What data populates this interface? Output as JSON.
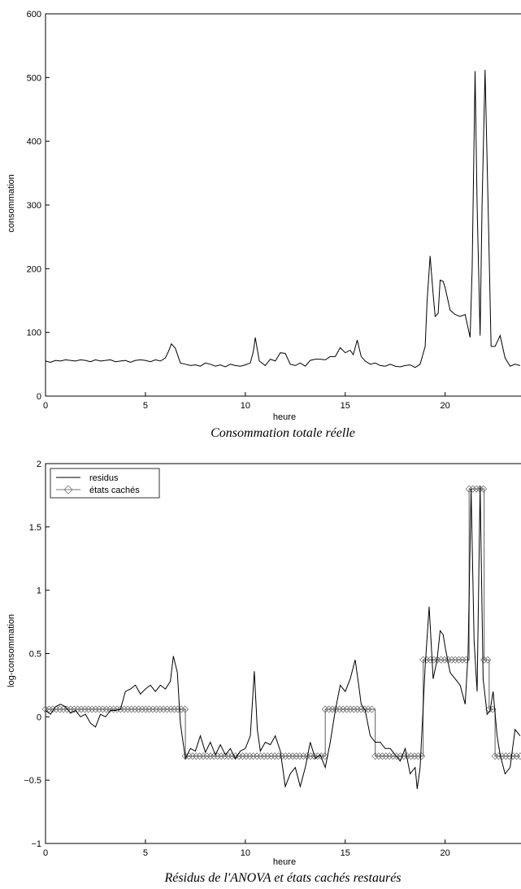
{
  "chart_data": [
    {
      "type": "line",
      "caption": "Consommation totale réelle",
      "xlabel": "heure",
      "ylabel": "consommation",
      "xlim": [
        0,
        23.75
      ],
      "ylim": [
        0,
        600
      ],
      "xticks": [
        "0",
        "5",
        "10",
        "15",
        "20"
      ],
      "yticks": [
        "0",
        "100",
        "200",
        "300",
        "400",
        "500",
        "600"
      ],
      "grid": false,
      "series": [
        {
          "color": "#000000",
          "points": [
            [
              0,
              55
            ],
            [
              0.25,
              53
            ],
            [
              0.5,
              56
            ],
            [
              0.75,
              55
            ],
            [
              1,
              57
            ],
            [
              1.25,
              56
            ],
            [
              1.5,
              55
            ],
            [
              1.75,
              57
            ],
            [
              2,
              56
            ],
            [
              2.25,
              54
            ],
            [
              2.5,
              57
            ],
            [
              2.75,
              55
            ],
            [
              3,
              56
            ],
            [
              3.25,
              57
            ],
            [
              3.5,
              54
            ],
            [
              3.75,
              55
            ],
            [
              4,
              56
            ],
            [
              4.25,
              53
            ],
            [
              4.5,
              56
            ],
            [
              4.75,
              57
            ],
            [
              5,
              56
            ],
            [
              5.25,
              54
            ],
            [
              5.5,
              57
            ],
            [
              5.75,
              55
            ],
            [
              6,
              60
            ],
            [
              6.15,
              70
            ],
            [
              6.3,
              82
            ],
            [
              6.5,
              75
            ],
            [
              6.75,
              52
            ],
            [
              7,
              50
            ],
            [
              7.25,
              48
            ],
            [
              7.5,
              49
            ],
            [
              7.75,
              47
            ],
            [
              8,
              52
            ],
            [
              8.25,
              50
            ],
            [
              8.5,
              47
            ],
            [
              8.75,
              49
            ],
            [
              9,
              46
            ],
            [
              9.25,
              50
            ],
            [
              9.5,
              48
            ],
            [
              9.75,
              47
            ],
            [
              10,
              49
            ],
            [
              10.25,
              52
            ],
            [
              10.4,
              70
            ],
            [
              10.5,
              92
            ],
            [
              10.7,
              55
            ],
            [
              11,
              48
            ],
            [
              11.25,
              58
            ],
            [
              11.5,
              55
            ],
            [
              11.75,
              68
            ],
            [
              12,
              67
            ],
            [
              12.25,
              50
            ],
            [
              12.5,
              48
            ],
            [
              12.75,
              52
            ],
            [
              13,
              47
            ],
            [
              13.25,
              56
            ],
            [
              13.5,
              58
            ],
            [
              13.75,
              58
            ],
            [
              14,
              57
            ],
            [
              14.25,
              62
            ],
            [
              14.5,
              62
            ],
            [
              14.75,
              76
            ],
            [
              15,
              68
            ],
            [
              15.25,
              72
            ],
            [
              15.4,
              65
            ],
            [
              15.6,
              88
            ],
            [
              15.8,
              62
            ],
            [
              16,
              55
            ],
            [
              16.25,
              50
            ],
            [
              16.5,
              52
            ],
            [
              16.75,
              48
            ],
            [
              17,
              47
            ],
            [
              17.25,
              50
            ],
            [
              17.5,
              47
            ],
            [
              17.75,
              46
            ],
            [
              18,
              48
            ],
            [
              18.25,
              49
            ],
            [
              18.5,
              45
            ],
            [
              18.75,
              50
            ],
            [
              19,
              78
            ],
            [
              19.1,
              150
            ],
            [
              19.25,
              220
            ],
            [
              19.4,
              160
            ],
            [
              19.5,
              125
            ],
            [
              19.65,
              130
            ],
            [
              19.75,
              182
            ],
            [
              19.9,
              180
            ],
            [
              20,
              170
            ],
            [
              20.25,
              135
            ],
            [
              20.5,
              128
            ],
            [
              20.75,
              125
            ],
            [
              21,
              128
            ],
            [
              21.25,
              92
            ],
            [
              21.35,
              200
            ],
            [
              21.5,
              510
            ],
            [
              21.6,
              300
            ],
            [
              21.75,
              95
            ],
            [
              21.85,
              300
            ],
            [
              22,
              512
            ],
            [
              22.15,
              300
            ],
            [
              22.3,
              78
            ],
            [
              22.5,
              78
            ],
            [
              22.75,
              95
            ],
            [
              23,
              60
            ],
            [
              23.25,
              47
            ],
            [
              23.5,
              50
            ],
            [
              23.75,
              48
            ]
          ]
        }
      ]
    },
    {
      "type": "line",
      "caption": "Résidus de l'ANOVA et états cachés restaurés",
      "xlabel": "heure",
      "ylabel": "log-consommation",
      "xlim": [
        0,
        23.75
      ],
      "ylim": [
        -1,
        2
      ],
      "xticks": [
        "0",
        "5",
        "10",
        "15",
        "20"
      ],
      "yticks": [
        "-1",
        "-0.5",
        "0",
        "0.5",
        "1",
        "1.5",
        "2"
      ],
      "grid": false,
      "legend": {
        "position": "top-left",
        "entries": [
          "residus",
          "états cachés"
        ]
      },
      "series": [
        {
          "name": "residus",
          "color": "#000000",
          "points": [
            [
              0,
              0.05
            ],
            [
              0.25,
              0.02
            ],
            [
              0.5,
              0.08
            ],
            [
              0.75,
              0.1
            ],
            [
              1,
              0.08
            ],
            [
              1.25,
              0.03
            ],
            [
              1.5,
              0.05
            ],
            [
              1.75,
              0.0
            ],
            [
              2,
              0.02
            ],
            [
              2.25,
              -0.05
            ],
            [
              2.5,
              -0.08
            ],
            [
              2.75,
              0.02
            ],
            [
              3,
              0.0
            ],
            [
              3.25,
              0.05
            ],
            [
              3.5,
              0.05
            ],
            [
              3.75,
              0.06
            ],
            [
              4,
              0.2
            ],
            [
              4.25,
              0.22
            ],
            [
              4.5,
              0.25
            ],
            [
              4.75,
              0.18
            ],
            [
              5,
              0.22
            ],
            [
              5.25,
              0.25
            ],
            [
              5.5,
              0.2
            ],
            [
              5.75,
              0.25
            ],
            [
              6,
              0.22
            ],
            [
              6.25,
              0.28
            ],
            [
              6.4,
              0.48
            ],
            [
              6.6,
              0.35
            ],
            [
              6.75,
              -0.05
            ],
            [
              7,
              -0.33
            ],
            [
              7.25,
              -0.25
            ],
            [
              7.5,
              -0.27
            ],
            [
              7.75,
              -0.15
            ],
            [
              8,
              -0.28
            ],
            [
              8.25,
              -0.2
            ],
            [
              8.5,
              -0.3
            ],
            [
              8.75,
              -0.22
            ],
            [
              9,
              -0.3
            ],
            [
              9.25,
              -0.25
            ],
            [
              9.5,
              -0.33
            ],
            [
              9.75,
              -0.27
            ],
            [
              10,
              -0.25
            ],
            [
              10.25,
              -0.15
            ],
            [
              10.45,
              0.36
            ],
            [
              10.6,
              -0.1
            ],
            [
              10.75,
              -0.27
            ],
            [
              11,
              -0.2
            ],
            [
              11.25,
              -0.22
            ],
            [
              11.5,
              -0.15
            ],
            [
              11.75,
              -0.27
            ],
            [
              12,
              -0.55
            ],
            [
              12.25,
              -0.45
            ],
            [
              12.5,
              -0.4
            ],
            [
              12.75,
              -0.55
            ],
            [
              13,
              -0.4
            ],
            [
              13.25,
              -0.2
            ],
            [
              13.5,
              -0.33
            ],
            [
              13.75,
              -0.3
            ],
            [
              14,
              -0.4
            ],
            [
              14.25,
              -0.2
            ],
            [
              14.5,
              0.05
            ],
            [
              14.75,
              0.25
            ],
            [
              15,
              0.2
            ],
            [
              15.25,
              0.3
            ],
            [
              15.5,
              0.45
            ],
            [
              15.65,
              0.28
            ],
            [
              15.8,
              0.1
            ],
            [
              16,
              0.05
            ],
            [
              16.25,
              -0.15
            ],
            [
              16.5,
              -0.2
            ],
            [
              16.75,
              -0.2
            ],
            [
              17,
              -0.25
            ],
            [
              17.25,
              -0.25
            ],
            [
              17.5,
              -0.3
            ],
            [
              17.75,
              -0.35
            ],
            [
              18,
              -0.25
            ],
            [
              18.25,
              -0.45
            ],
            [
              18.5,
              -0.4
            ],
            [
              18.6,
              -0.57
            ],
            [
              18.75,
              -0.4
            ],
            [
              19,
              0.4
            ],
            [
              19.2,
              0.87
            ],
            [
              19.4,
              0.3
            ],
            [
              19.6,
              0.45
            ],
            [
              19.75,
              0.68
            ],
            [
              19.9,
              0.65
            ],
            [
              20,
              0.55
            ],
            [
              20.25,
              0.35
            ],
            [
              20.5,
              0.3
            ],
            [
              20.75,
              0.25
            ],
            [
              21,
              0.1
            ],
            [
              21.15,
              0.5
            ],
            [
              21.3,
              1.8
            ],
            [
              21.45,
              0.6
            ],
            [
              21.6,
              0.2
            ],
            [
              21.75,
              1.82
            ],
            [
              21.9,
              0.3
            ],
            [
              22.1,
              0.02
            ],
            [
              22.25,
              0.05
            ],
            [
              22.4,
              0.2
            ],
            [
              22.6,
              -0.15
            ],
            [
              22.75,
              -0.3
            ],
            [
              23,
              -0.45
            ],
            [
              23.25,
              -0.4
            ],
            [
              23.5,
              -0.1
            ],
            [
              23.75,
              -0.15
            ]
          ]
        },
        {
          "name": "états cachés",
          "color": "#777777",
          "points": [
            [
              0,
              0.06
            ],
            [
              7,
              0.06
            ],
            [
              7,
              -0.31
            ],
            [
              14,
              -0.31
            ],
            [
              14,
              0.06
            ],
            [
              16.5,
              0.06
            ],
            [
              16.5,
              -0.31
            ],
            [
              18.9,
              -0.31
            ],
            [
              18.9,
              0.45
            ],
            [
              21.2,
              0.45
            ],
            [
              21.2,
              1.8
            ],
            [
              21.95,
              1.8
            ],
            [
              21.95,
              0.45
            ],
            [
              22.2,
              0.45
            ],
            [
              22.2,
              0.06
            ],
            [
              22.5,
              0.06
            ],
            [
              22.5,
              -0.31
            ],
            [
              23.75,
              -0.31
            ]
          ]
        }
      ]
    }
  ]
}
